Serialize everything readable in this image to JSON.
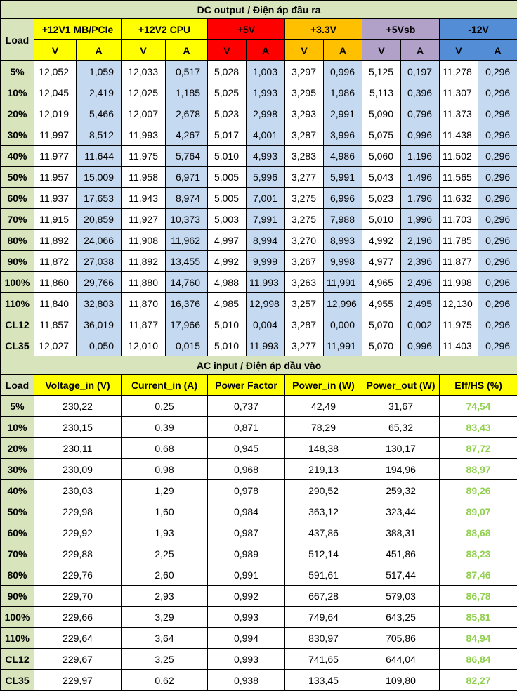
{
  "dc": {
    "title": "DC output / Điện áp đầu ra",
    "load_label": "Load",
    "groups": [
      {
        "name": "+12V1 MB/PCIe",
        "color": "#ffff00"
      },
      {
        "name": "+12V2 CPU",
        "color": "#ffff00"
      },
      {
        "name": "+5V",
        "color": "#ff0000"
      },
      {
        "name": "+3.3V",
        "color": "#ffc000"
      },
      {
        "name": "+5Vsb",
        "color": "#b1a0c7"
      },
      {
        "name": "-12V",
        "color": "#538dd5"
      }
    ],
    "v_label": "V",
    "a_label": "A",
    "rows": [
      {
        "load": "5%",
        "values": [
          "12,052",
          "1,059",
          "12,033",
          "0,517",
          "5,028",
          "1,003",
          "3,297",
          "0,996",
          "5,125",
          "0,197",
          "11,278",
          "0,296"
        ]
      },
      {
        "load": "10%",
        "values": [
          "12,045",
          "2,419",
          "12,025",
          "1,185",
          "5,025",
          "1,993",
          "3,295",
          "1,986",
          "5,113",
          "0,396",
          "11,307",
          "0,296"
        ]
      },
      {
        "load": "20%",
        "values": [
          "12,019",
          "5,466",
          "12,007",
          "2,678",
          "5,023",
          "2,998",
          "3,293",
          "2,991",
          "5,090",
          "0,796",
          "11,373",
          "0,296"
        ]
      },
      {
        "load": "30%",
        "values": [
          "11,997",
          "8,512",
          "11,993",
          "4,267",
          "5,017",
          "4,001",
          "3,287",
          "3,996",
          "5,075",
          "0,996",
          "11,438",
          "0,296"
        ]
      },
      {
        "load": "40%",
        "values": [
          "11,977",
          "11,644",
          "11,975",
          "5,764",
          "5,010",
          "4,993",
          "3,283",
          "4,986",
          "5,060",
          "1,196",
          "11,502",
          "0,296"
        ]
      },
      {
        "load": "50%",
        "values": [
          "11,957",
          "15,009",
          "11,958",
          "6,971",
          "5,005",
          "5,996",
          "3,277",
          "5,991",
          "5,043",
          "1,496",
          "11,565",
          "0,296"
        ]
      },
      {
        "load": "60%",
        "values": [
          "11,937",
          "17,653",
          "11,943",
          "8,974",
          "5,005",
          "7,001",
          "3,275",
          "6,996",
          "5,023",
          "1,796",
          "11,632",
          "0,296"
        ]
      },
      {
        "load": "70%",
        "values": [
          "11,915",
          "20,859",
          "11,927",
          "10,373",
          "5,003",
          "7,991",
          "3,275",
          "7,988",
          "5,010",
          "1,996",
          "11,703",
          "0,296"
        ]
      },
      {
        "load": "80%",
        "values": [
          "11,892",
          "24,066",
          "11,908",
          "11,962",
          "4,997",
          "8,994",
          "3,270",
          "8,993",
          "4,992",
          "2,196",
          "11,785",
          "0,296"
        ]
      },
      {
        "load": "90%",
        "values": [
          "11,872",
          "27,038",
          "11,892",
          "13,455",
          "4,992",
          "9,999",
          "3,267",
          "9,998",
          "4,977",
          "2,396",
          "11,877",
          "0,296"
        ]
      },
      {
        "load": "100%",
        "values": [
          "11,860",
          "29,766",
          "11,880",
          "14,760",
          "4,988",
          "11,993",
          "3,263",
          "11,991",
          "4,965",
          "2,496",
          "11,998",
          "0,296"
        ]
      },
      {
        "load": "110%",
        "values": [
          "11,840",
          "32,803",
          "11,870",
          "16,376",
          "4,985",
          "12,998",
          "3,257",
          "12,996",
          "4,955",
          "2,495",
          "12,130",
          "0,296"
        ]
      },
      {
        "load": "CL12",
        "values": [
          "11,857",
          "36,019",
          "11,877",
          "17,966",
          "5,010",
          "0,004",
          "3,287",
          "0,000",
          "5,070",
          "0,002",
          "11,975",
          "0,296"
        ]
      },
      {
        "load": "CL35",
        "values": [
          "12,027",
          "0,050",
          "12,010",
          "0,015",
          "5,010",
          "11,993",
          "3,277",
          "11,991",
          "5,070",
          "0,996",
          "11,403",
          "0,296"
        ]
      }
    ]
  },
  "ac": {
    "title": "AC input / Điện áp đầu vào",
    "headers": [
      "Load",
      "Voltage_in (V)",
      "Current_in (A)",
      "Power Factor",
      "Power_in (W)",
      "Power_out (W)",
      "Eff/HS (%)"
    ],
    "eff_color": "#92d050",
    "rows": [
      {
        "load": "5%",
        "values": [
          "230,22",
          "0,25",
          "0,737",
          "42,49",
          "31,67",
          "74,54"
        ]
      },
      {
        "load": "10%",
        "values": [
          "230,15",
          "0,39",
          "0,871",
          "78,29",
          "65,32",
          "83,43"
        ]
      },
      {
        "load": "20%",
        "values": [
          "230,11",
          "0,68",
          "0,945",
          "148,38",
          "130,17",
          "87,72"
        ]
      },
      {
        "load": "30%",
        "values": [
          "230,09",
          "0,98",
          "0,968",
          "219,13",
          "194,96",
          "88,97"
        ]
      },
      {
        "load": "40%",
        "values": [
          "230,03",
          "1,29",
          "0,978",
          "290,52",
          "259,32",
          "89,26"
        ]
      },
      {
        "load": "50%",
        "values": [
          "229,98",
          "1,60",
          "0,984",
          "363,12",
          "323,44",
          "89,07"
        ]
      },
      {
        "load": "60%",
        "values": [
          "229,92",
          "1,93",
          "0,987",
          "437,86",
          "388,31",
          "88,68"
        ]
      },
      {
        "load": "70%",
        "values": [
          "229,88",
          "2,25",
          "0,989",
          "512,14",
          "451,86",
          "88,23"
        ]
      },
      {
        "load": "80%",
        "values": [
          "229,76",
          "2,60",
          "0,991",
          "591,61",
          "517,44",
          "87,46"
        ]
      },
      {
        "load": "90%",
        "values": [
          "229,70",
          "2,93",
          "0,992",
          "667,28",
          "579,03",
          "86,78"
        ]
      },
      {
        "load": "100%",
        "values": [
          "229,66",
          "3,29",
          "0,993",
          "749,64",
          "643,25",
          "85,81"
        ]
      },
      {
        "load": "110%",
        "values": [
          "229,64",
          "3,64",
          "0,994",
          "830,97",
          "705,86",
          "84,94"
        ]
      },
      {
        "load": "CL12",
        "values": [
          "229,67",
          "3,25",
          "0,993",
          "741,65",
          "644,04",
          "86,84"
        ]
      },
      {
        "load": "CL35",
        "values": [
          "229,97",
          "0,62",
          "0,938",
          "133,45",
          "109,80",
          "82,27"
        ]
      }
    ]
  }
}
